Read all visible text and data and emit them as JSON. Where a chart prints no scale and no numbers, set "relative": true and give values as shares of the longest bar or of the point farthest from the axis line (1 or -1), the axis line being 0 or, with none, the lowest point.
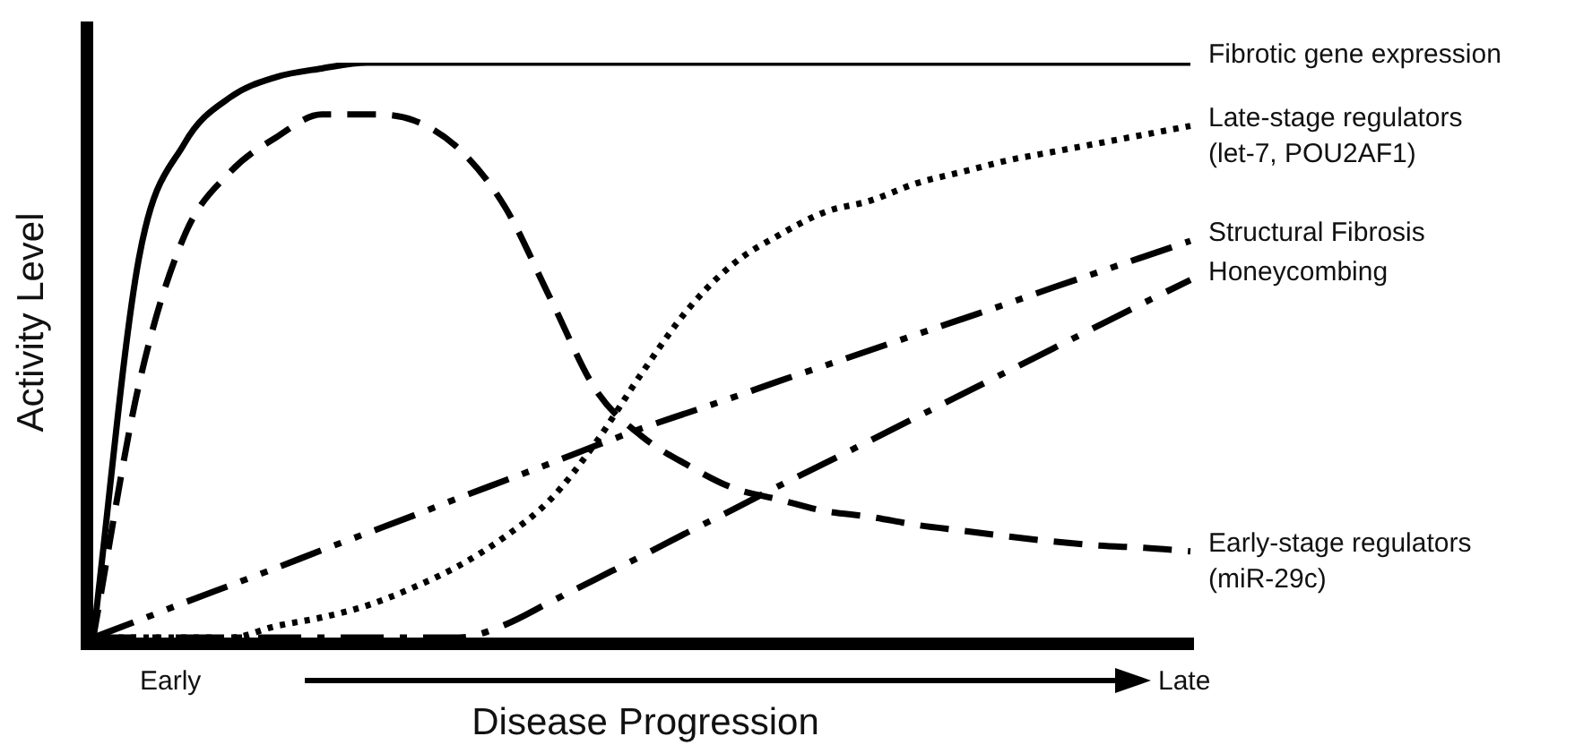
{
  "chart_data": {
    "type": "line",
    "relative": true,
    "xlabel": "Disease Progression",
    "ylabel": "Activity Level",
    "annotations": [
      "Early",
      "Late"
    ],
    "marker": "none",
    "categories": [
      null,
      null,
      null,
      null,
      null,
      null,
      null,
      null,
      null,
      null,
      null,
      null,
      null,
      null,
      null,
      null,
      null,
      null,
      null,
      null,
      null,
      null,
      null,
      null,
      null
    ],
    "series": [
      {
        "name": "Fibrotic gene expression",
        "color": "#000000",
        "line_style": "solid",
        "values": [
          0,
          0.66,
          0.86,
          0.94,
          0.975,
          0.99,
          1,
          1,
          1,
          1,
          1,
          1,
          1,
          1,
          1,
          1,
          1,
          1,
          1,
          1,
          1,
          1,
          1,
          1,
          1
        ]
      },
      {
        "name": "Late-stage regulators\n(let-7, POU2AF1)",
        "color": "#000000",
        "line_style": "dotted",
        "values": [
          0,
          0,
          0,
          0,
          0.02,
          0.035,
          0.056,
          0.087,
          0.125,
          0.175,
          0.24,
          0.34,
          0.46,
          0.57,
          0.65,
          0.7,
          0.74,
          0.76,
          0.79,
          0.81,
          0.83,
          0.845,
          0.86,
          0.875,
          0.89
        ]
      },
      {
        "name": "Structural Fibrosis",
        "color": "#000000",
        "line_style": "dashdotdot",
        "values": [
          0,
          0.03,
          0.061,
          0.091,
          0.121,
          0.152,
          0.182,
          0.212,
          0.243,
          0.273,
          0.303,
          0.334,
          0.364,
          0.391,
          0.418,
          0.446,
          0.473,
          0.5,
          0.527,
          0.554,
          0.581,
          0.609,
          0.636,
          0.663,
          0.69
        ]
      },
      {
        "name": "Honeycombing",
        "color": "#000000",
        "line_style": "dashdot",
        "values": [
          0,
          0,
          0,
          0,
          0,
          0,
          0,
          0,
          0,
          0.022,
          0.062,
          0.102,
          0.142,
          0.183,
          0.223,
          0.264,
          0.303,
          0.343,
          0.383,
          0.423,
          0.463,
          0.503,
          0.543,
          0.583,
          0.622
        ]
      },
      {
        "name": "Early-stage regulators\n(miR-29c)",
        "color": "#000000",
        "line_style": "dashed",
        "values": [
          0,
          0.44,
          0.7,
          0.81,
          0.87,
          0.91,
          0.91,
          0.9,
          0.85,
          0.75,
          0.59,
          0.43,
          0.35,
          0.3,
          0.26,
          0.24,
          0.22,
          0.21,
          0.196,
          0.186,
          0.176,
          0.167,
          0.16,
          0.156,
          0.15
        ]
      }
    ]
  }
}
